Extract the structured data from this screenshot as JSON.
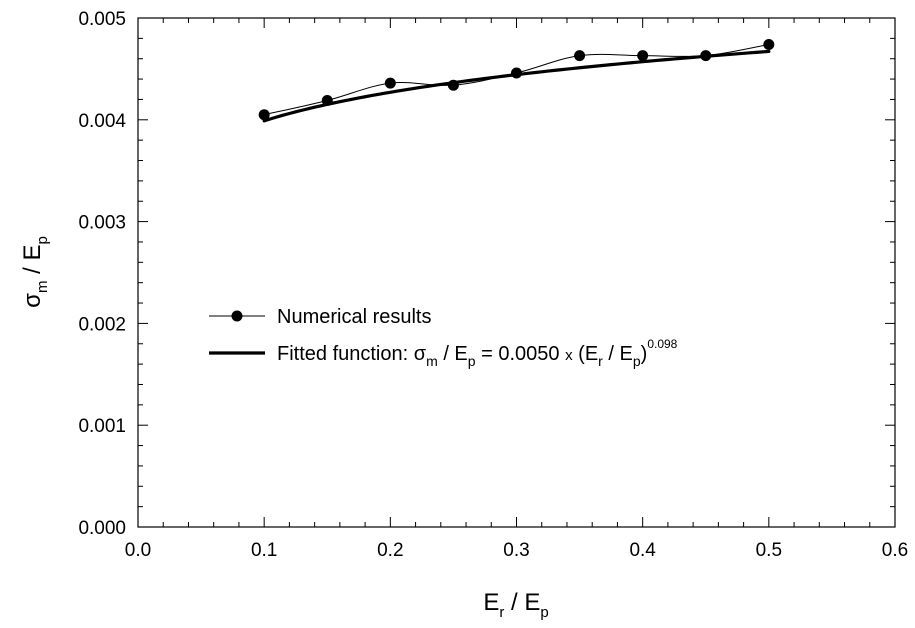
{
  "chart_data": {
    "type": "line",
    "xlim": [
      0.0,
      0.6
    ],
    "ylim": [
      0.0,
      0.005
    ],
    "x_ticks": [
      "0.0",
      "0.1",
      "0.2",
      "0.3",
      "0.4",
      "0.5",
      "0.6"
    ],
    "y_ticks": [
      "0.000",
      "0.001",
      "0.002",
      "0.003",
      "0.004",
      "0.005"
    ],
    "x_tick_values": [
      0.0,
      0.1,
      0.2,
      0.3,
      0.4,
      0.5,
      0.6
    ],
    "y_tick_values": [
      0.0,
      0.001,
      0.002,
      0.003,
      0.004,
      0.005
    ],
    "grid": false,
    "legend_position": "center-left",
    "xlabel": {
      "main": "E",
      "sub1": "r",
      "mid": " / E",
      "sub2": "p"
    },
    "ylabel": {
      "main": "σ",
      "sub1": "m",
      "mid": " / E",
      "sub2": "p"
    },
    "series": [
      {
        "name": "Numerical results",
        "marker": "filled-circle",
        "line": "thin-smooth",
        "x": [
          0.1,
          0.15,
          0.2,
          0.25,
          0.3,
          0.35,
          0.4,
          0.45,
          0.5
        ],
        "y": [
          0.00405,
          0.00419,
          0.00436,
          0.00434,
          0.00446,
          0.00463,
          0.00463,
          0.00463,
          0.00474
        ]
      },
      {
        "name": "Fitted function",
        "marker": "none",
        "line": "thick",
        "coefficient": 0.005,
        "exponent": 0.098,
        "x_range": [
          0.1,
          0.5
        ]
      }
    ],
    "legend": {
      "numerical_label": "Numerical results",
      "fitted_prefix": "Fitted function: ",
      "fitted_sigma": "σ",
      "fitted_sub_m": "m",
      "fitted_div_e": " / E",
      "fitted_sub_p": "p",
      "fitted_equals": " = 0.0050 ",
      "fitted_times": "x",
      "fitted_paren_e": " (E",
      "fitted_sub_r": "r",
      "fitted_div_e2": " / E",
      "fitted_sub_p2": "p",
      "fitted_close": ")",
      "fitted_exponent": "0.098"
    },
    "colors": {
      "line": "#000000",
      "background": "#ffffff"
    }
  }
}
